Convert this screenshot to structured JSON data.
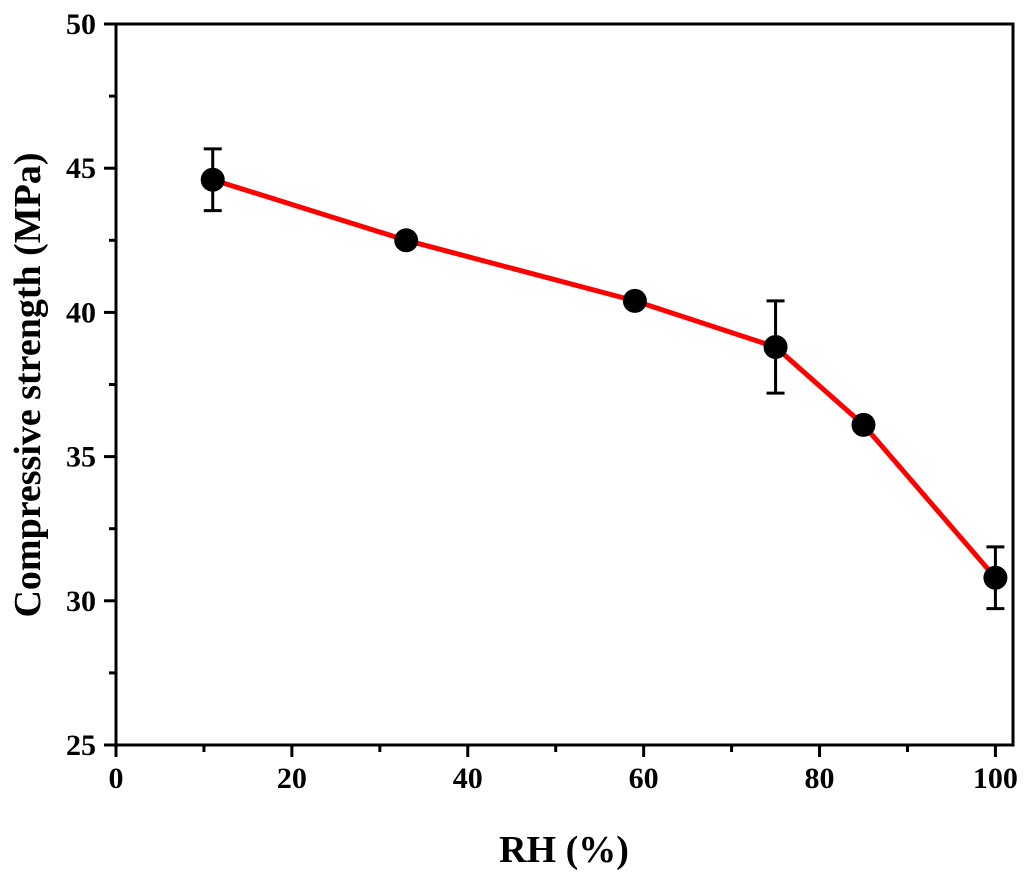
{
  "chart_data": {
    "type": "line",
    "title": "",
    "xlabel": "RH (%)",
    "ylabel": "Compressive strength (MPa)",
    "xlim": [
      0,
      102
    ],
    "ylim": [
      25,
      50
    ],
    "xticks": [
      0,
      20,
      40,
      60,
      80,
      100
    ],
    "yticks": [
      25,
      30,
      35,
      40,
      45,
      50
    ],
    "grid": false,
    "legend": "none",
    "line_color": "#ff0000",
    "marker_color": "#000000",
    "series": [
      {
        "x": [
          11,
          33,
          59,
          75,
          85,
          100
        ],
        "y": [
          44.6,
          42.5,
          40.4,
          38.8,
          36.1,
          30.8
        ],
        "error": [
          1.07,
          0,
          0,
          1.6,
          0,
          1.07
        ]
      }
    ]
  }
}
